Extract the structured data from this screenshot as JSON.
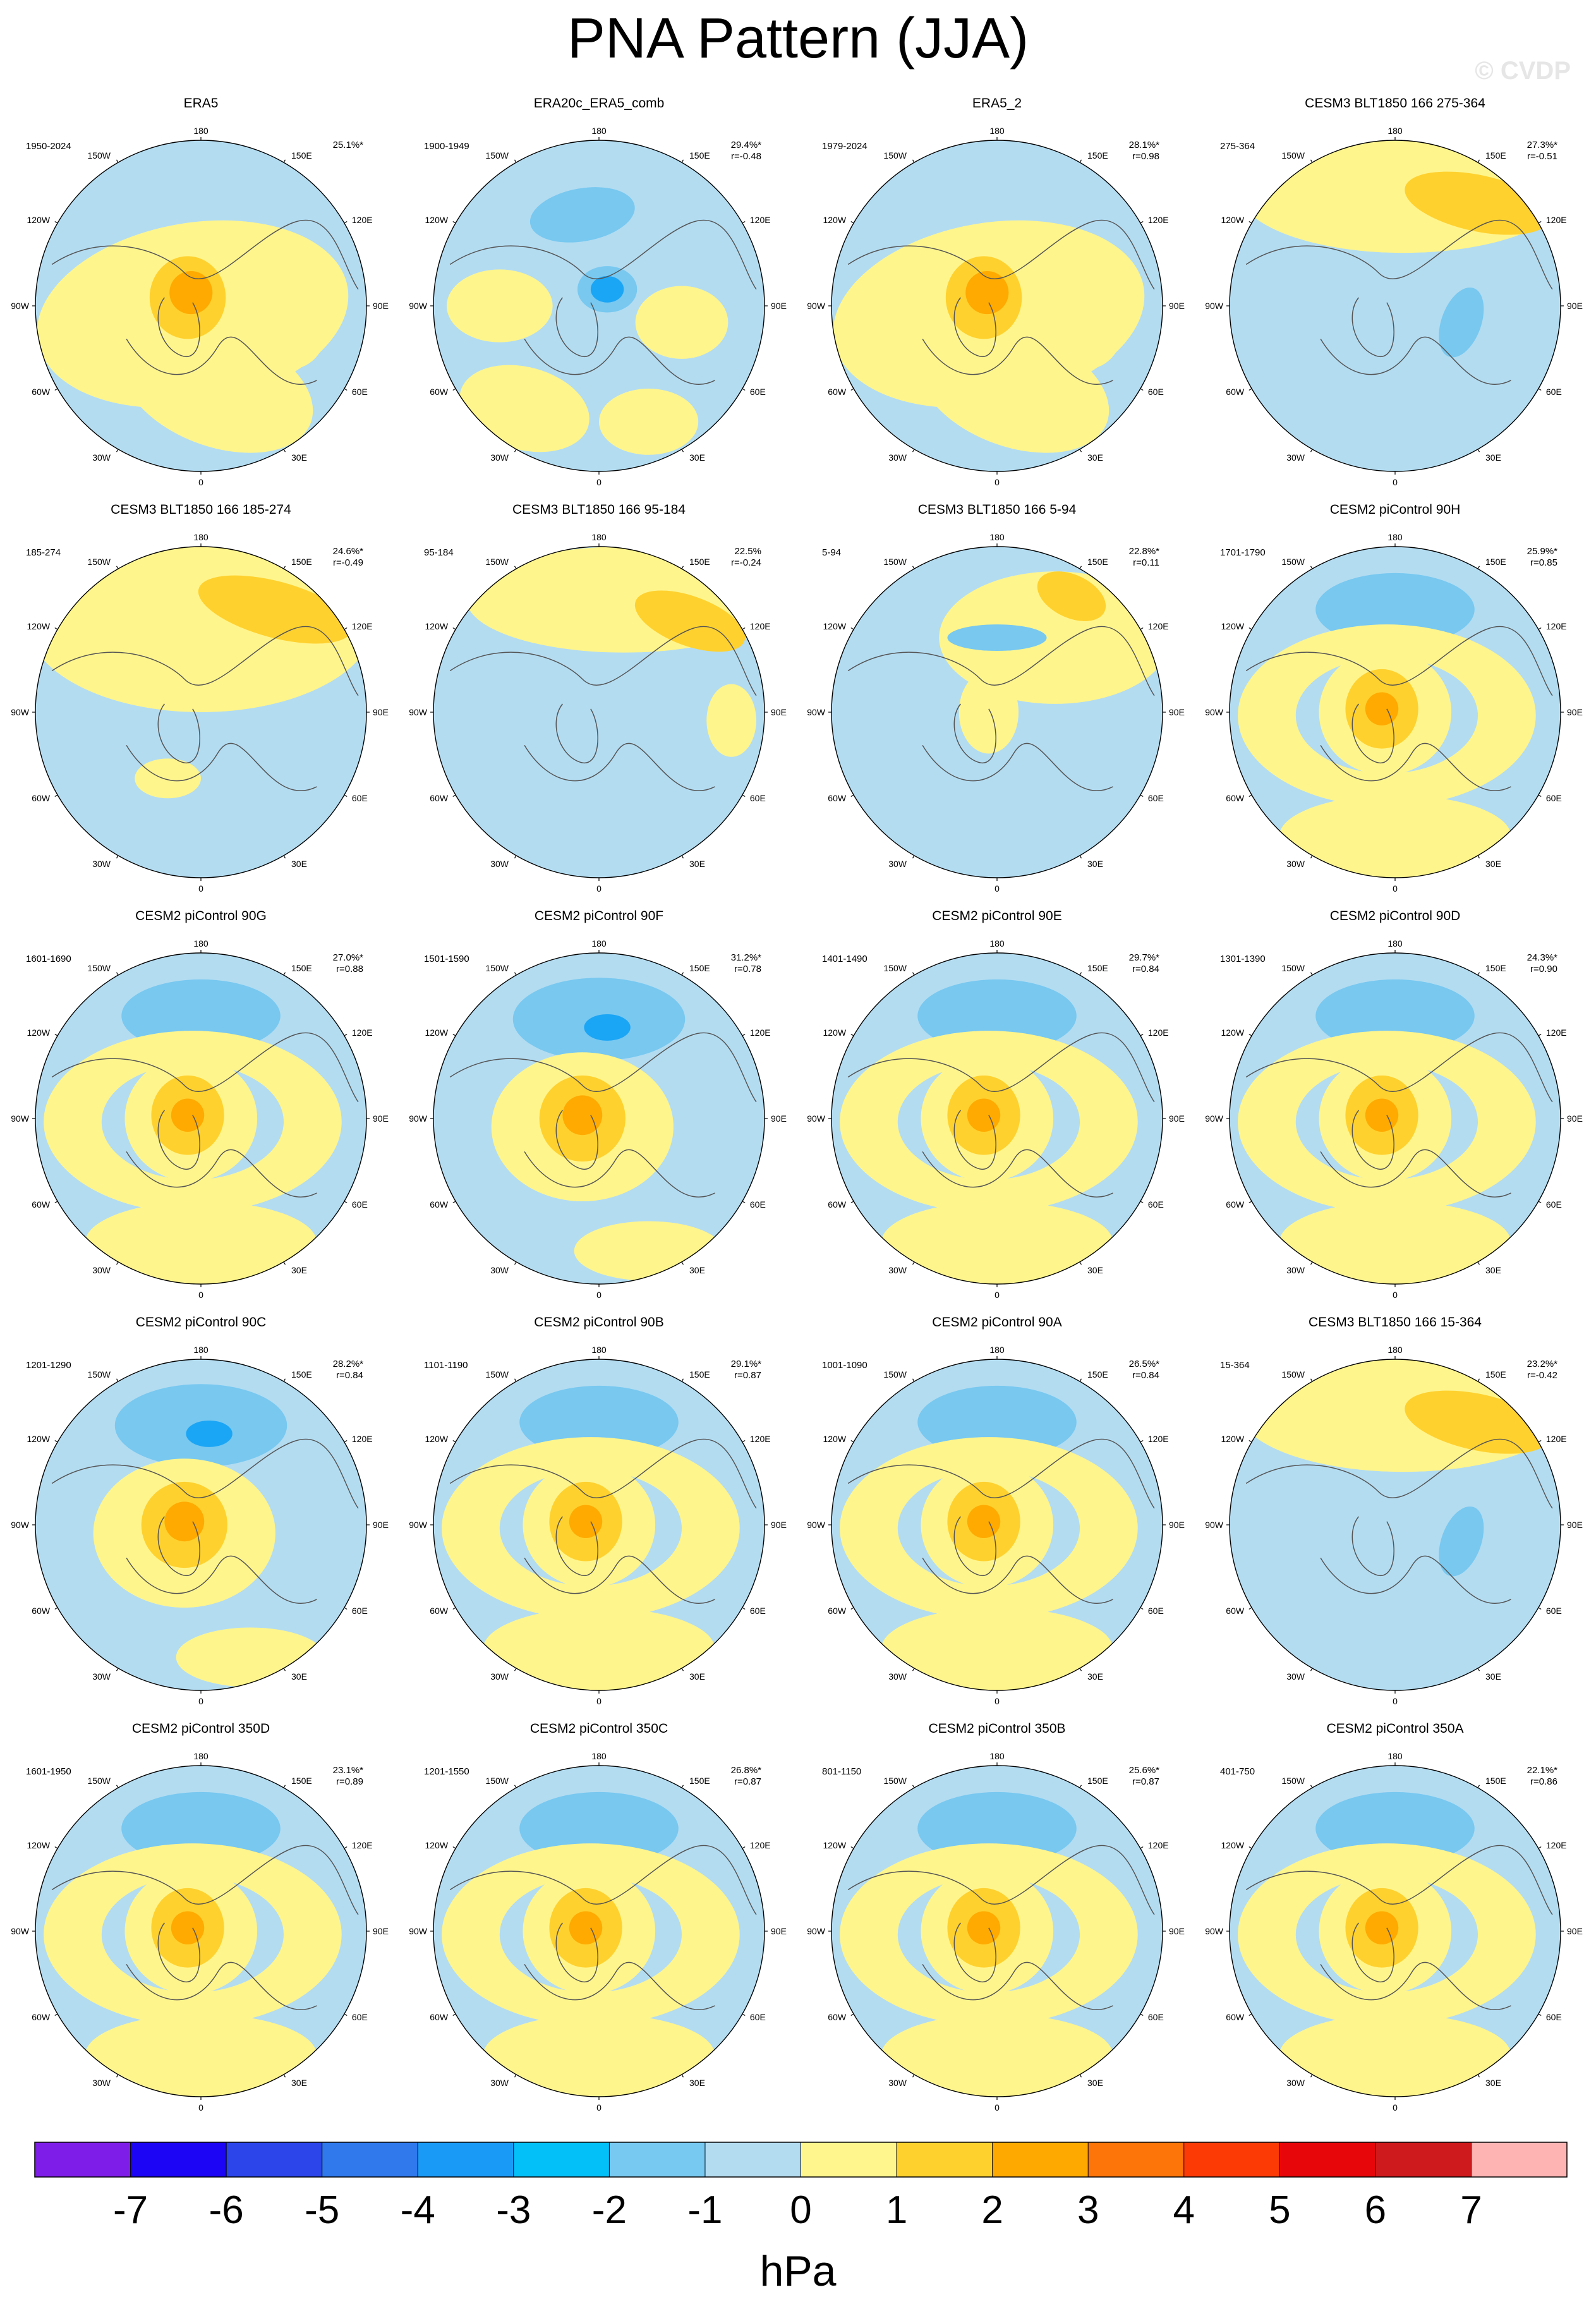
{
  "title": "PNA Pattern (JJA)",
  "watermark": "© CVDP",
  "colors": {
    "ocean": "#b3dcf1",
    "yellow": "#fff58d",
    "orange": "#ffd12e",
    "dark_orange": "#ffaa00",
    "blue": "#78c8f0",
    "deep_blue": "#1ba5f5",
    "coast": "#555555"
  },
  "chart_data": {
    "type": "heatmap",
    "projection": "north polar stereographic",
    "units": "hPa",
    "colorbar": {
      "levels": [
        "-7",
        "-6",
        "-5",
        "-4",
        "-3",
        "-2",
        "-1",
        "0",
        "1",
        "2",
        "3",
        "4",
        "5",
        "6",
        "7"
      ],
      "colors": [
        "#7f1de8",
        "#1c05f4",
        "#2b45eb",
        "#2f79ed",
        "#1a9af7",
        "#04c0f9",
        "#78c9f2",
        "#b4dcf1",
        "#fff68e",
        "#ffd12d",
        "#fea900",
        "#fd7408",
        "#fc3a06",
        "#e70609",
        "#ce1a1c",
        "#fdb4b3"
      ]
    },
    "lon_labels": {
      "top": "180",
      "bottom": "0",
      "left_upper": "120W",
      "left_mid": "90W",
      "left_lower": "60W",
      "right_upper": "120E",
      "right_mid": "90E",
      "right_lower": "60E",
      "top_left": "150W",
      "top_right": "150E",
      "bottom_left": "30W",
      "bottom_right": "30E"
    },
    "panels": [
      {
        "title": "ERA5",
        "period": "1950-2024",
        "pct": "25.1%*",
        "r": "",
        "pattern": "A"
      },
      {
        "title": "ERA20c_ERA5_comb",
        "period": "1900-1949",
        "pct": "29.4%*",
        "r": "r=-0.48",
        "pattern": "B"
      },
      {
        "title": "ERA5_2",
        "period": "1979-2024",
        "pct": "28.1%*",
        "r": "r=0.98",
        "pattern": "A"
      },
      {
        "title": "CESM3 BLT1850 166 275-364",
        "period": "275-364",
        "pct": "27.3%*",
        "r": "r=-0.51",
        "pattern": "C"
      },
      {
        "title": "CESM3 BLT1850 166 185-274",
        "period": "185-274",
        "pct": "24.6%*",
        "r": "r=-0.49",
        "pattern": "D"
      },
      {
        "title": "CESM3 BLT1850 166 95-184",
        "period": "95-184",
        "pct": "22.5%",
        "r": "r=-0.24",
        "pattern": "E"
      },
      {
        "title": "CESM3 BLT1850 166 5-94",
        "period": "5-94",
        "pct": "22.8%*",
        "r": "r=0.11",
        "pattern": "F"
      },
      {
        "title": "CESM2 piControl 90H",
        "period": "1701-1790",
        "pct": "25.9%*",
        "r": "r=0.85",
        "pattern": "G"
      },
      {
        "title": "CESM2 piControl 90G",
        "period": "1601-1690",
        "pct": "27.0%*",
        "r": "r=0.88",
        "pattern": "G"
      },
      {
        "title": "CESM2 piControl 90F",
        "period": "1501-1590",
        "pct": "31.2%*",
        "r": "r=0.78",
        "pattern": "H"
      },
      {
        "title": "CESM2 piControl 90E",
        "period": "1401-1490",
        "pct": "29.7%*",
        "r": "r=0.84",
        "pattern": "G"
      },
      {
        "title": "CESM2 piControl 90D",
        "period": "1301-1390",
        "pct": "24.3%*",
        "r": "r=0.90",
        "pattern": "G"
      },
      {
        "title": "CESM2 piControl 90C",
        "period": "1201-1290",
        "pct": "28.2%*",
        "r": "r=0.84",
        "pattern": "H"
      },
      {
        "title": "CESM2 piControl 90B",
        "period": "1101-1190",
        "pct": "29.1%*",
        "r": "r=0.87",
        "pattern": "G"
      },
      {
        "title": "CESM2 piControl 90A",
        "period": "1001-1090",
        "pct": "26.5%*",
        "r": "r=0.84",
        "pattern": "G"
      },
      {
        "title": "CESM3 BLT1850 166 15-364",
        "period": "15-364",
        "pct": "23.2%*",
        "r": "r=-0.42",
        "pattern": "C"
      },
      {
        "title": "CESM2 piControl 350D",
        "period": "1601-1950",
        "pct": "23.1%*",
        "r": "r=0.89",
        "pattern": "G"
      },
      {
        "title": "CESM2 piControl 350C",
        "period": "1201-1550",
        "pct": "26.8%*",
        "r": "r=0.87",
        "pattern": "G"
      },
      {
        "title": "CESM2 piControl 350B",
        "period": "801-1150",
        "pct": "25.6%*",
        "r": "r=0.87",
        "pattern": "G"
      },
      {
        "title": "CESM2 piControl 350A",
        "period": "401-750",
        "pct": "22.1%*",
        "r": "r=0.86",
        "pattern": "G"
      }
    ]
  }
}
